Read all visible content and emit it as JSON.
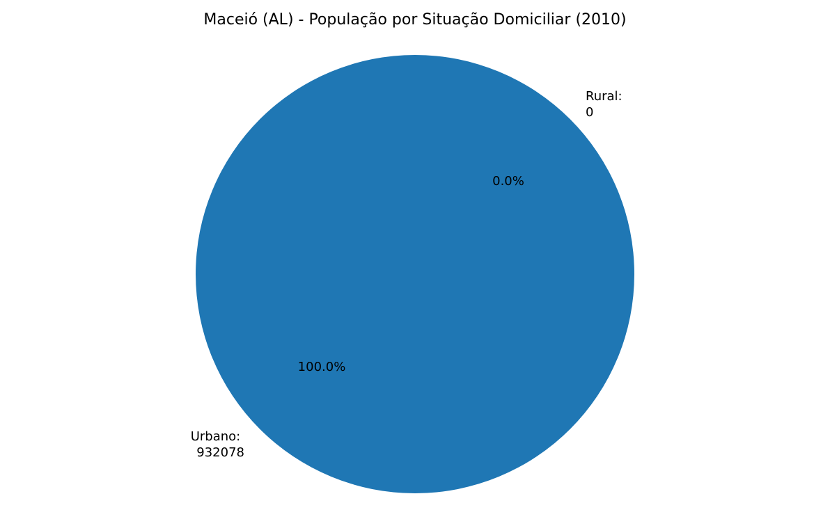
{
  "chart_data": {
    "type": "pie",
    "title": "Maceió (AL) - População por Situação Domiciliar (2010)",
    "slices": [
      {
        "key": "rural",
        "label_line1": "Rural:",
        "label_line2": "0",
        "value": 0,
        "percent_label": "0.0%",
        "color": "#1f77b4"
      },
      {
        "key": "urbano",
        "label_line1": "Urbano:",
        "label_line2": "932078",
        "value": 932078,
        "percent_label": "100.0%",
        "color": "#1f77b4"
      }
    ],
    "total": 932078
  }
}
